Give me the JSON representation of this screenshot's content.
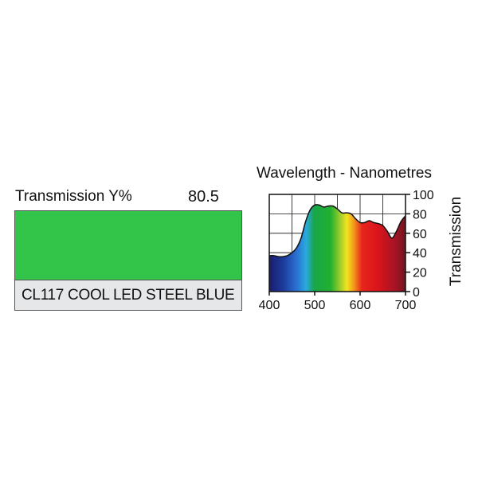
{
  "transmission": {
    "label": "Transmission Y%",
    "value": "80.5"
  },
  "swatch": {
    "color": "#33c44a"
  },
  "filter_name": "CL117 COOL LED STEEL BLUE",
  "chart_data": {
    "type": "area",
    "title": "Wavelength - Nanometres",
    "xlabel": "",
    "ylabel": "Transmission",
    "xlim": [
      400,
      700
    ],
    "ylim": [
      0,
      100
    ],
    "x_ticks": [
      "400",
      "500",
      "600",
      "700"
    ],
    "y_ticks": [
      "0",
      "20",
      "40",
      "60",
      "80",
      "100"
    ],
    "grid": true,
    "series": [
      {
        "x": [
          400,
          410,
          420,
          430,
          440,
          450,
          460,
          470,
          480,
          490,
          500,
          510,
          520,
          530,
          540,
          550,
          560,
          570,
          580,
          590,
          600,
          610,
          620,
          630,
          640,
          650,
          660,
          670,
          680,
          690,
          700
        ],
        "y": [
          37,
          37,
          36,
          36,
          37,
          40,
          45,
          55,
          72,
          84,
          89,
          89,
          87,
          88,
          88,
          85,
          81,
          81,
          80,
          75,
          71,
          71,
          73,
          71,
          70,
          68,
          62,
          55,
          62,
          72,
          78
        ]
      }
    ]
  }
}
